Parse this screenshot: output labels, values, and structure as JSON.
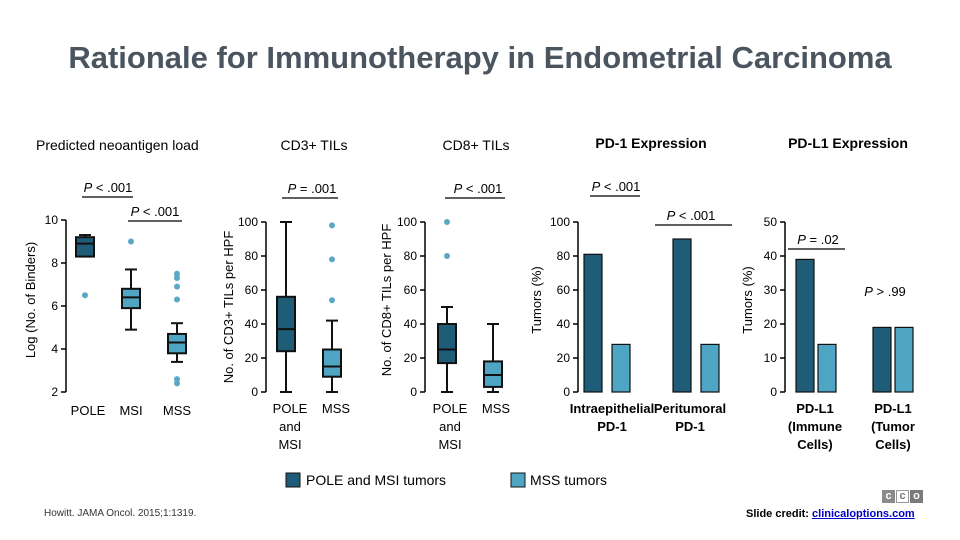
{
  "title": "Rationale for Immunotherapy in Endometrial Carcinoma",
  "citation": "Howitt. JAMA Oncol. 2015;1:1319.",
  "credit": {
    "label": "Slide credit:",
    "link": "clinicaloptions.com"
  },
  "logo_text": [
    "c",
    "c",
    "o"
  ],
  "colors": {
    "pole_msi": "#1f5c78",
    "mss": "#4ea6c4",
    "title": "#4a5560"
  },
  "legend": {
    "pole_msi": "POLE and MSI tumors",
    "mss": "MSS tumors"
  },
  "chart_data": [
    {
      "type": "box",
      "title": "Predicted neoantigen load",
      "ylabel": "Log (No. of Binders)",
      "ylim": [
        2,
        10
      ],
      "yticks": [
        "2",
        "4",
        "6",
        "8",
        "10"
      ],
      "categories": [
        "POLE",
        "MSI",
        "MSS"
      ],
      "boxes": [
        {
          "min": 8.3,
          "q1": 8.3,
          "median": 8.9,
          "q3": 9.2,
          "max": 9.3,
          "outliers": [
            6.5
          ]
        },
        {
          "min": 4.9,
          "q1": 5.9,
          "median": 6.4,
          "q3": 6.8,
          "max": 7.7,
          "outliers": [
            9.0
          ]
        },
        {
          "min": 3.4,
          "q1": 3.8,
          "median": 4.3,
          "q3": 4.7,
          "max": 5.2,
          "outliers": [
            7.5,
            7.3,
            6.9,
            6.3,
            2.6,
            2.4
          ]
        }
      ],
      "annotations": [
        "P < .001",
        "P < .001"
      ]
    },
    {
      "type": "box",
      "title": "CD3+ TILs",
      "ylabel": "No. of CD3+ TILs per HPF",
      "ylim": [
        0,
        100
      ],
      "yticks": [
        "0",
        "20",
        "40",
        "60",
        "80",
        "100"
      ],
      "categories": [
        "POLE and MSI",
        "MSS"
      ],
      "boxes": [
        {
          "min": 0,
          "q1": 24,
          "median": 37,
          "q3": 56,
          "max": 100,
          "outliers": []
        },
        {
          "min": 0,
          "q1": 9,
          "median": 15,
          "q3": 25,
          "max": 42,
          "outliers": [
            98,
            78,
            54
          ]
        }
      ],
      "annotations": [
        "P = .001"
      ]
    },
    {
      "type": "box",
      "title": "CD8+ TILs",
      "ylabel": "No. of CD8+ TILs per HPF",
      "ylim": [
        0,
        100
      ],
      "yticks": [
        "0",
        "20",
        "40",
        "60",
        "80",
        "100"
      ],
      "categories": [
        "POLE and MSI",
        "MSS"
      ],
      "boxes": [
        {
          "min": 0,
          "q1": 17,
          "median": 25,
          "q3": 40,
          "max": 50,
          "outliers": [
            100,
            80
          ]
        },
        {
          "min": 0,
          "q1": 3,
          "median": 10,
          "q3": 18,
          "max": 40,
          "outliers": []
        }
      ],
      "annotations": [
        "P < .001"
      ]
    },
    {
      "type": "bar",
      "title": "PD-1 Expression",
      "ylabel": "Tumors (%)",
      "ylim": [
        0,
        100
      ],
      "yticks": [
        "0",
        "20",
        "40",
        "60",
        "80",
        "100"
      ],
      "categories": [
        "Intraepithelial PD-1",
        "Peritumoral PD-1"
      ],
      "series": [
        {
          "name": "POLE and MSI tumors",
          "values": [
            81,
            90
          ]
        },
        {
          "name": "MSS tumors",
          "values": [
            28,
            28
          ]
        }
      ],
      "annotations": [
        "P < .001",
        "P < .001"
      ]
    },
    {
      "type": "bar",
      "title": "PD-L1 Expression",
      "ylabel": "Tumors (%)",
      "ylim": [
        0,
        50
      ],
      "yticks": [
        "0",
        "10",
        "20",
        "30",
        "40",
        "50"
      ],
      "categories": [
        "PD-L1 (Immune Cells)",
        "PD-L1 (Tumor Cells)"
      ],
      "series": [
        {
          "name": "POLE and MSI tumors",
          "values": [
            39,
            19
          ]
        },
        {
          "name": "MSS tumors",
          "values": [
            14,
            19
          ]
        }
      ],
      "annotations": [
        "P = .02",
        "P > .99"
      ]
    }
  ]
}
